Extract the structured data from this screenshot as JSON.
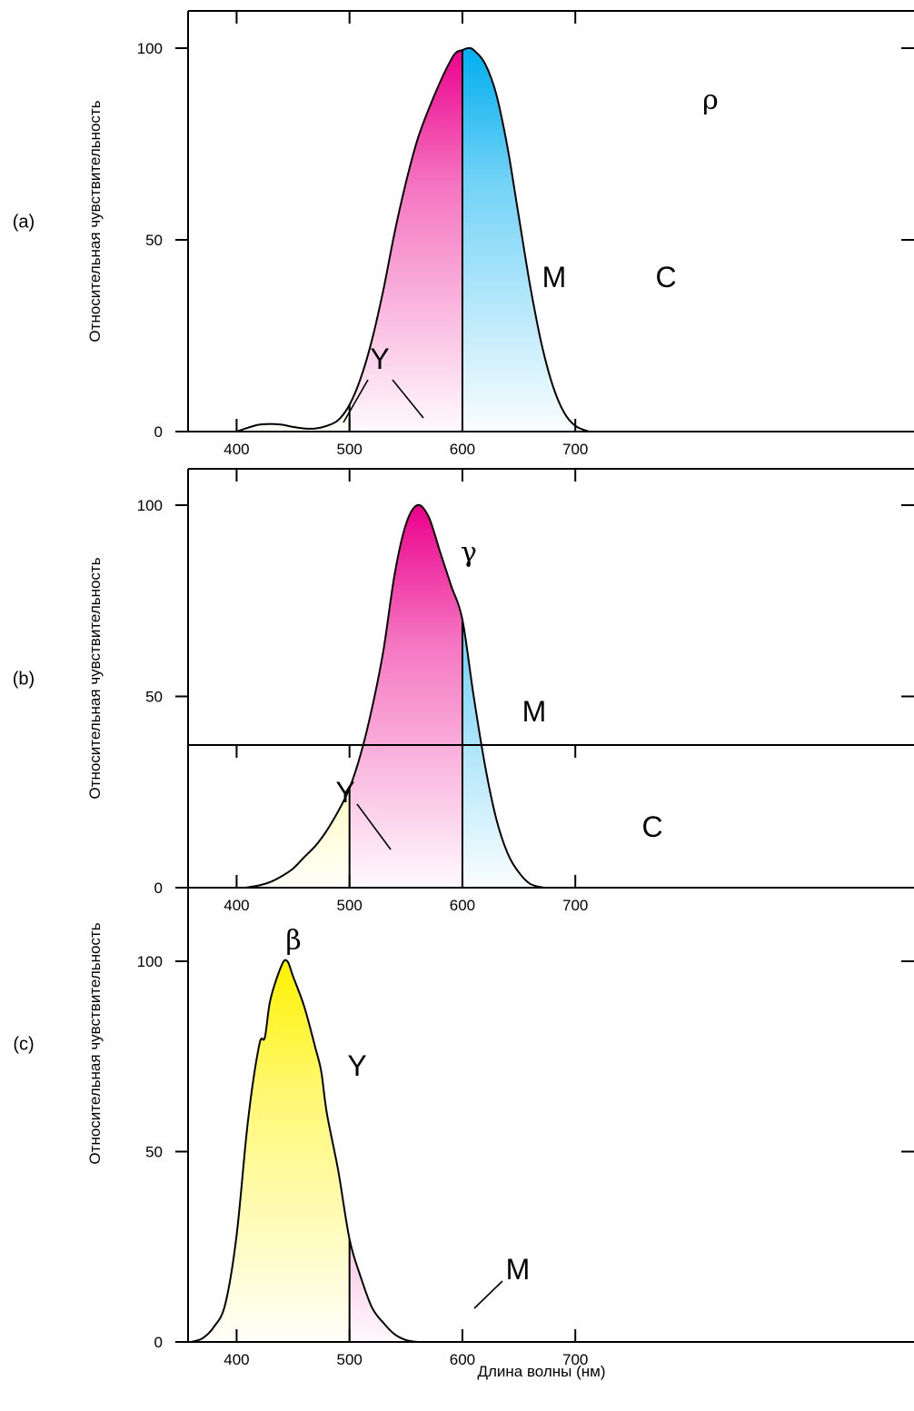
{
  "colors": {
    "yellow": "#fff200",
    "magenta": "#ec008c",
    "cyan": "#00aeef",
    "axis": "#000000"
  },
  "chart_data": [
    {
      "type": "area",
      "panel_label": "(a)",
      "ylabel": "Относительная чувствительность",
      "xlabel": "",
      "curve_label": "ρ",
      "xlim": [
        357,
        1000
      ],
      "ylim": [
        0,
        110
      ],
      "x_ticks": [
        400,
        500,
        600,
        700
      ],
      "y_ticks": [
        0,
        50,
        100
      ],
      "curve": {
        "x": [
          400,
          410,
          420,
          430,
          440,
          450,
          460,
          470,
          480,
          490,
          500,
          510,
          520,
          530,
          540,
          550,
          560,
          570,
          580,
          590,
          595,
          600,
          605,
          610,
          620,
          630,
          640,
          650,
          660,
          670,
          680,
          690,
          700,
          712
        ],
        "y": [
          0,
          1,
          1.8,
          2,
          1.8,
          1.2,
          0.8,
          0.8,
          1.5,
          3,
          7,
          14,
          24,
          37,
          52,
          65,
          76,
          84,
          91,
          97,
          99,
          99.5,
          100,
          99.5,
          96,
          88,
          74,
          56,
          38,
          23,
          12,
          5,
          1.5,
          0
        ]
      },
      "regions": [
        {
          "label": "Y",
          "from": 400,
          "to": 500,
          "color": "yellow"
        },
        {
          "label": "M",
          "from": 500,
          "to": 600,
          "color": "magenta"
        },
        {
          "label": "C",
          "from": 600,
          "to": 712,
          "color": "cyan"
        }
      ]
    },
    {
      "type": "area",
      "panel_label": "(b)",
      "ylabel": "Относительная чувствительность",
      "xlabel": "",
      "curve_label": "γ",
      "xlim": [
        357,
        1000
      ],
      "ylim": [
        0,
        110
      ],
      "x_ticks": [
        400,
        500,
        600,
        700
      ],
      "y_ticks": [
        0,
        50,
        100
      ],
      "curve": {
        "x": [
          408,
          420,
          430,
          440,
          450,
          460,
          470,
          480,
          490,
          500,
          510,
          520,
          530,
          540,
          550,
          560,
          570,
          580,
          590,
          600,
          610,
          620,
          630,
          640,
          650,
          660,
          672
        ],
        "y": [
          0,
          0.6,
          1.5,
          3,
          5,
          8,
          11,
          15,
          20,
          26,
          35,
          47,
          62,
          82,
          95,
          100,
          97,
          88,
          79,
          70,
          50,
          32,
          18,
          9,
          4,
          1,
          0
        ]
      },
      "regions": [
        {
          "label": "Y",
          "from": 408,
          "to": 500,
          "color": "yellow"
        },
        {
          "label": "M",
          "from": 500,
          "to": 600,
          "color": "magenta"
        },
        {
          "label": "C",
          "from": 600,
          "to": 672,
          "color": "cyan"
        }
      ]
    },
    {
      "type": "area",
      "panel_label": "(c)",
      "ylabel": "Относительная чувствительность",
      "xlabel": "Длина волны (нм)",
      "curve_label": "β",
      "xlim": [
        357,
        1000
      ],
      "ylim": [
        0,
        110
      ],
      "x_ticks": [
        400,
        500,
        600,
        700
      ],
      "y_ticks": [
        0,
        50,
        100
      ],
      "curve": {
        "x": [
          360,
          370,
          380,
          390,
          400,
          410,
          420,
          425,
          430,
          440,
          445,
          450,
          460,
          470,
          475,
          480,
          490,
          500,
          510,
          520,
          530,
          540,
          550,
          560
        ],
        "y": [
          0,
          1,
          4,
          10,
          28,
          58,
          78,
          80,
          90,
          99,
          100,
          96,
          88,
          77,
          71,
          60,
          45,
          27,
          17,
          9,
          5,
          2,
          0.5,
          0
        ]
      },
      "regions": [
        {
          "label": "Y",
          "from": 360,
          "to": 500,
          "color": "yellow"
        },
        {
          "label": "M",
          "from": 500,
          "to": 560,
          "color": "magenta"
        }
      ]
    }
  ]
}
